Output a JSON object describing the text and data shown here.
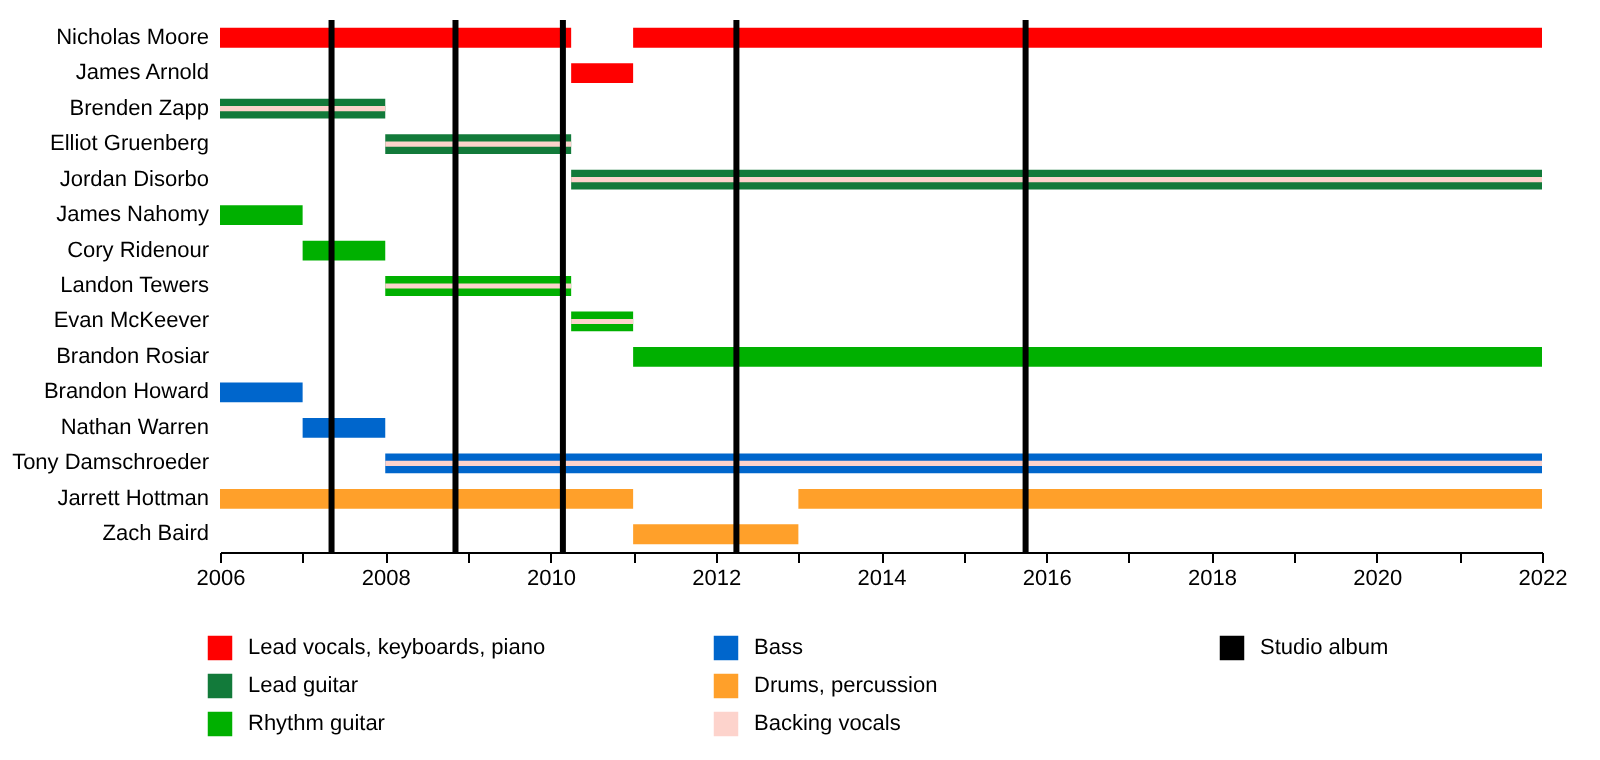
{
  "chart_data": {
    "type": "bar",
    "orientation": "horizontal",
    "legend": "bottom",
    "grid": false,
    "categories": [
      "Nicholas Moore",
      "James Arnold",
      "Brenden Zapp",
      "Elliot Gruenberg",
      "Jordan Disorbo",
      "James Nahomy",
      "Cory Ridenour",
      "Landon Tewers",
      "Evan McKeever",
      "Brandon Rosiar",
      "Brandon Howard",
      "Nathan Warren",
      "Tony Damschroeder",
      "Jarrett Hottman",
      "Zach Baird"
    ],
    "xlim": [
      2006,
      2022
    ],
    "xticks": [
      2006,
      {
        "value": 2007,
        "label": null
      },
      2008,
      {
        "value": 2009,
        "label": null
      },
      2010,
      {
        "value": 2011,
        "label": null
      },
      2012,
      {
        "value": 2013,
        "label": null
      },
      2014,
      {
        "value": 2015,
        "label": null
      },
      2016,
      {
        "value": 2017,
        "label": null
      },
      2018,
      {
        "value": 2019,
        "label": null
      },
      2020,
      {
        "value": 2021,
        "label": null
      },
      2022
    ],
    "series": [
      {
        "name": "Lead vocals, keyboards, piano",
        "color": "#ff0000",
        "base": [
          2006,
          2010.25,
          null,
          null,
          null,
          null,
          null,
          null,
          null,
          null,
          null,
          null,
          null,
          null,
          null
        ],
        "values": [
          4.25,
          0.75,
          null,
          null,
          null,
          null,
          null,
          null,
          null,
          null,
          null,
          null,
          null,
          null,
          null
        ]
      },
      {
        "color": "#ff0000",
        "base": [
          2011,
          null,
          null,
          null,
          null,
          null,
          null,
          null,
          null,
          null,
          null,
          null,
          null,
          null,
          null
        ],
        "values": [
          11,
          null,
          null,
          null,
          null,
          null,
          null,
          null,
          null,
          null,
          null,
          null,
          null,
          null,
          null
        ]
      },
      {
        "name": "Lead guitar",
        "color": "#127a3a",
        "base": [
          null,
          null,
          2006,
          2008,
          2010.25,
          null,
          null,
          null,
          null,
          null,
          null,
          null,
          null,
          null,
          null
        ],
        "values": [
          null,
          null,
          2,
          2.25,
          11.75,
          null,
          null,
          null,
          null,
          null,
          null,
          null,
          null,
          null,
          null
        ]
      },
      {
        "name": "Rhythm guitar",
        "color": "#00b000",
        "base": [
          null,
          null,
          null,
          null,
          null,
          2006,
          2007,
          2008,
          2010.25,
          2011,
          null,
          null,
          null,
          null,
          null
        ],
        "values": [
          null,
          null,
          null,
          null,
          null,
          1,
          1,
          2.25,
          0.75,
          11,
          null,
          null,
          null,
          null,
          null
        ]
      },
      {
        "name": "Bass",
        "color": "#0066cc",
        "base": [
          null,
          null,
          null,
          null,
          null,
          null,
          null,
          null,
          null,
          null,
          2006,
          2007,
          2008,
          null,
          null
        ],
        "values": [
          null,
          null,
          null,
          null,
          null,
          null,
          null,
          null,
          null,
          null,
          1,
          1,
          14,
          null,
          null
        ]
      },
      {
        "name": "Drums, percussion",
        "color": "#ffa02a",
        "base": [
          null,
          null,
          null,
          null,
          null,
          null,
          null,
          null,
          null,
          null,
          null,
          null,
          null,
          2006,
          2011
        ],
        "values": [
          null,
          null,
          null,
          null,
          null,
          null,
          null,
          null,
          null,
          null,
          null,
          null,
          null,
          5,
          2
        ]
      },
      {
        "color": "#ffa02a",
        "base": [
          null,
          null,
          null,
          null,
          null,
          null,
          null,
          null,
          null,
          null,
          null,
          null,
          null,
          2013,
          null
        ],
        "values": [
          null,
          null,
          null,
          null,
          null,
          null,
          null,
          null,
          null,
          null,
          null,
          null,
          null,
          9,
          null
        ]
      },
      {
        "name": "Backing vocals",
        "color": "#fdd3cc",
        "base": [
          null,
          null,
          2006,
          2008,
          2010.25,
          null,
          null,
          2008,
          2010.25,
          null,
          null,
          null,
          2008,
          null,
          null
        ],
        "values": [
          null,
          null,
          2,
          2.25,
          11.75,
          null,
          null,
          2.25,
          0.75,
          null,
          null,
          null,
          14,
          null,
          null
        ]
      }
    ],
    "ref_lines": [
      {
        "axis": "x",
        "value": 2007.35,
        "label": "Studio album",
        "color": "#000000"
      },
      {
        "axis": "x",
        "value": 2008.85,
        "color": "#000000"
      },
      {
        "axis": "x",
        "value": 2010.15,
        "color": "#000000"
      },
      {
        "axis": "x",
        "value": 2012.25,
        "color": "#000000"
      },
      {
        "axis": "x",
        "value": 2015.75,
        "color": "#000000"
      }
    ]
  }
}
